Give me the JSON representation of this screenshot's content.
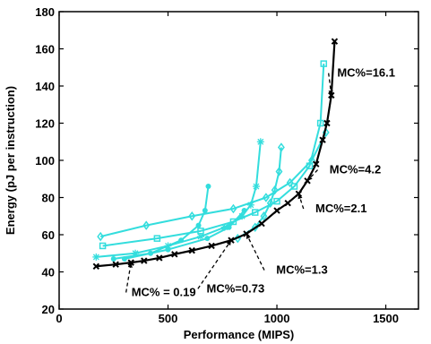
{
  "chart_data": {
    "type": "line",
    "title": "",
    "xlabel": "Performance (MIPS)",
    "ylabel": "Energy (pJ per instruction)",
    "xlim": [
      0,
      1650
    ],
    "ylim": [
      20,
      180
    ],
    "xticks": [
      0,
      500,
      1000,
      1500
    ],
    "yticks": [
      20,
      40,
      60,
      80,
      100,
      120,
      140,
      160,
      180
    ],
    "grid": false,
    "legend": "none",
    "colors": {
      "frontier": "#000000",
      "series": "#33dddd"
    },
    "series": [
      {
        "marker": "diamond",
        "x": [
          190,
          400,
          610,
          800,
          950,
          1060,
          1160,
          1225
        ],
        "y": [
          59,
          65,
          70,
          74,
          80,
          88,
          100,
          115
        ]
      },
      {
        "marker": "square",
        "x": [
          200,
          450,
          650,
          800,
          900,
          1000,
          1080,
          1150,
          1200,
          1215
        ],
        "y": [
          54,
          58,
          62,
          67,
          72,
          78,
          86,
          97,
          120,
          152
        ]
      },
      {
        "marker": "star",
        "x": [
          170,
          350,
          500,
          650,
          760,
          840,
          880,
          905,
          925
        ],
        "y": [
          48,
          50,
          54,
          59,
          64,
          70,
          76,
          86,
          110
        ]
      },
      {
        "marker": "circle",
        "x": [
          250,
          420,
          560,
          640,
          670,
          685
        ],
        "y": [
          47,
          50,
          57,
          65,
          73,
          86
        ]
      },
      {
        "marker": "diamond",
        "x": [
          820,
          900,
          940,
          970,
          990,
          1010,
          1020
        ],
        "y": [
          58,
          64,
          70,
          77,
          84,
          94,
          107
        ]
      },
      {
        "marker": "circle",
        "x": [
          300,
          500,
          680,
          780,
          850
        ],
        "y": [
          47,
          52,
          58,
          64,
          73
        ]
      }
    ],
    "frontier": {
      "marker": "x",
      "x": [
        170,
        260,
        330,
        390,
        460,
        530,
        610,
        700,
        790,
        860,
        930,
        1000,
        1050,
        1100,
        1140,
        1180,
        1210,
        1230,
        1250,
        1265
      ],
      "y": [
        43,
        44,
        45,
        46,
        47.5,
        49.5,
        51.5,
        54,
        57,
        60.5,
        66,
        73,
        77,
        82,
        89,
        98,
        111,
        120,
        135,
        164
      ]
    },
    "annotations": [
      {
        "text": "MC% = 0.19",
        "x": 480,
        "y": 27,
        "target": [
          330,
          45
        ]
      },
      {
        "text": "MC%=0.73",
        "x": 810,
        "y": 29,
        "target": [
          790,
          57
        ]
      },
      {
        "text": "MC%=1.3",
        "x": 1115,
        "y": 39,
        "target": [
          860,
          60.5
        ]
      },
      {
        "text": "MC%=2.1",
        "x": 1295,
        "y": 72,
        "target": [
          1100,
          82
        ]
      },
      {
        "text": "MC%=4.2",
        "x": 1360,
        "y": 93,
        "target": [
          1140,
          89
        ]
      },
      {
        "text": "MC%=16.1",
        "x": 1410,
        "y": 145,
        "target": [
          1250,
          135
        ]
      }
    ]
  }
}
